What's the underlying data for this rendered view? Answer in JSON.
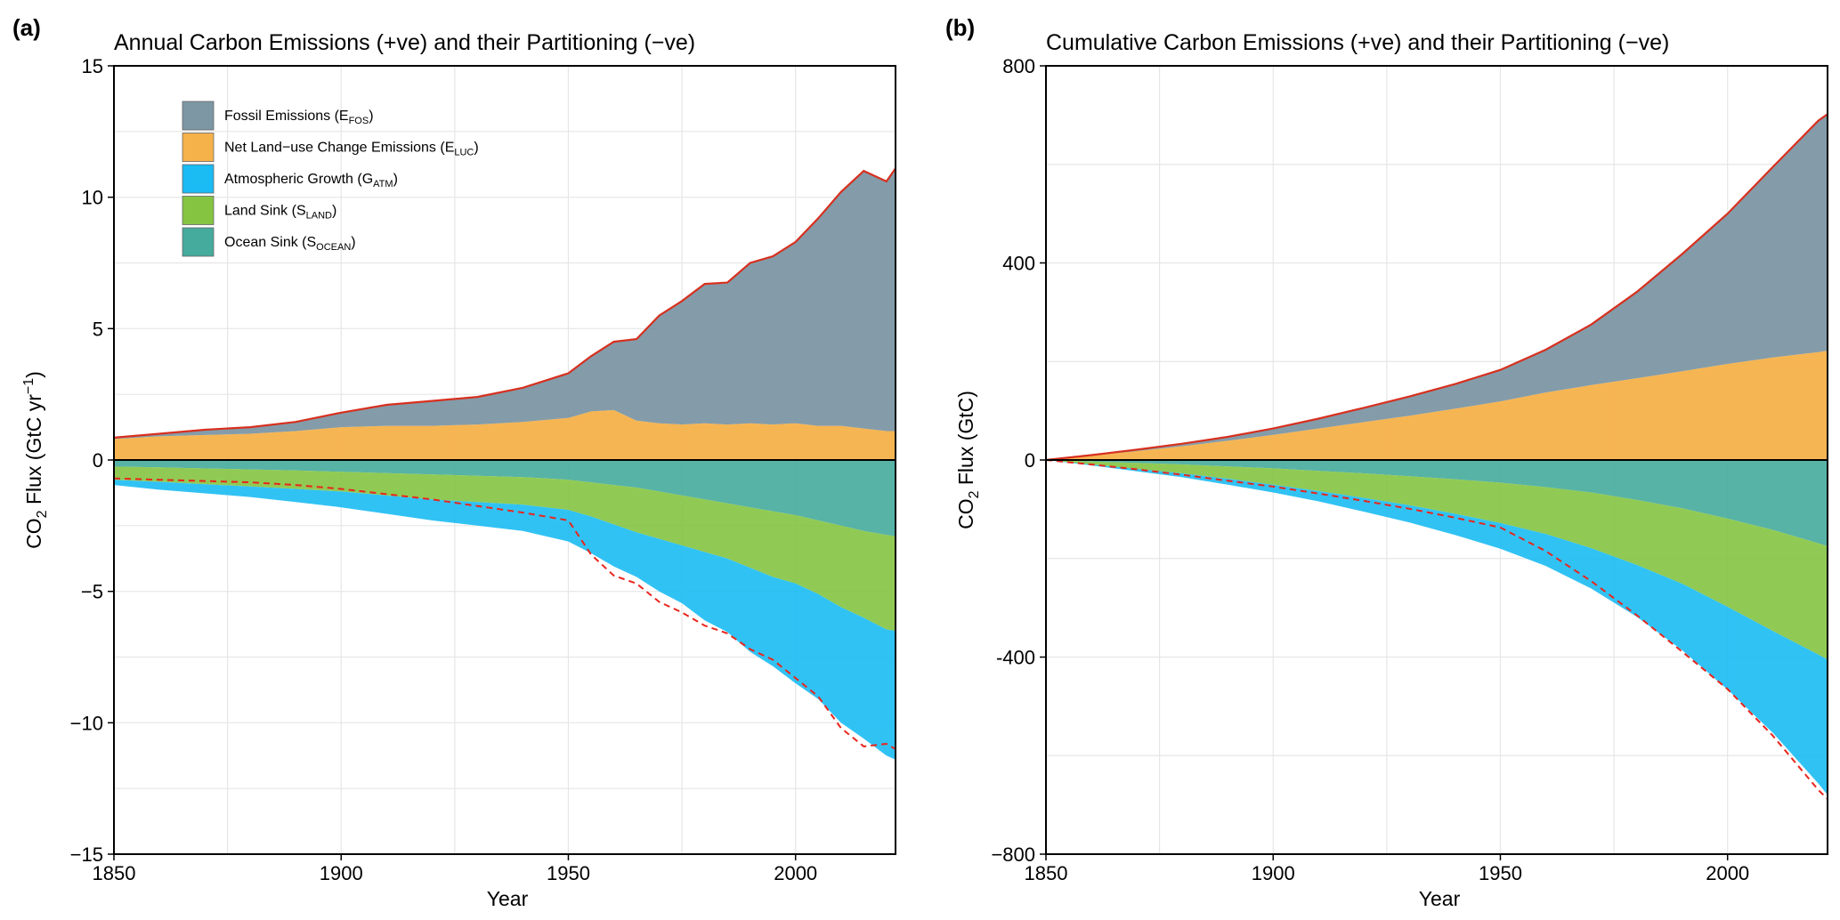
{
  "colors": {
    "fossil": "#7d97a4",
    "luc": "#f5b14a",
    "atm": "#1bbbf3",
    "land": "#84c441",
    "ocean": "#45ab9c",
    "total_line": "#d7301f",
    "partition_line": "#e8261c"
  },
  "chart_data": [
    {
      "type": "area",
      "panel": "(a)",
      "title": "Annual Carbon Emissions (+ve) and their Partitioning (−ve)",
      "xlabel": "Year",
      "ylabel": {
        "prefix": "CO",
        "sub": "2",
        "middle": " Flux (GtC yr",
        "sup": "−1",
        "suffix": ")"
      },
      "xlim": [
        1850,
        2022
      ],
      "ylim": [
        -15,
        15
      ],
      "xticks": [
        1850,
        1900,
        1950,
        2000
      ],
      "xtick_labels": [
        "1850",
        "1900",
        "1950",
        "2000"
      ],
      "yticks": [
        -15,
        -10,
        -5,
        0,
        5,
        10,
        15
      ],
      "ytick_labels": [
        "−15",
        "−10",
        "−5",
        "0",
        "5",
        "10",
        "15"
      ],
      "grid": true,
      "legend_position": "top-left",
      "legend": [
        {
          "key": "fossil",
          "text": "Fossil Emissions (E",
          "sub": "FOS",
          "end": ")"
        },
        {
          "key": "luc",
          "text": "Net Land−use Change Emissions (E",
          "sub": "LUC",
          "end": ")"
        },
        {
          "key": "atm",
          "text": "Atmospheric Growth (G",
          "sub": "ATM",
          "end": ")"
        },
        {
          "key": "land",
          "text": "Land Sink (S",
          "sub": "LAND",
          "end": ")"
        },
        {
          "key": "ocean",
          "text": "Ocean Sink (S",
          "sub": "OCEAN",
          "end": ")"
        }
      ],
      "years": [
        1850,
        1860,
        1870,
        1880,
        1890,
        1900,
        1910,
        1920,
        1930,
        1940,
        1950,
        1955,
        1960,
        1965,
        1970,
        1975,
        1980,
        1985,
        1990,
        1995,
        2000,
        2005,
        2010,
        2015,
        2020,
        2022
      ],
      "series": {
        "fossil": [
          0.05,
          0.1,
          0.2,
          0.25,
          0.35,
          0.55,
          0.8,
          0.95,
          1.05,
          1.3,
          1.7,
          2.1,
          2.6,
          3.1,
          4.1,
          4.7,
          5.3,
          5.4,
          6.1,
          6.4,
          6.9,
          7.9,
          8.9,
          9.8,
          9.5,
          10.0
        ],
        "luc": [
          0.8,
          0.9,
          0.95,
          1.0,
          1.1,
          1.25,
          1.3,
          1.3,
          1.35,
          1.45,
          1.6,
          1.85,
          1.9,
          1.5,
          1.4,
          1.35,
          1.4,
          1.35,
          1.4,
          1.35,
          1.4,
          1.3,
          1.3,
          1.2,
          1.1,
          1.1
        ],
        "ocean": [
          -0.25,
          -0.28,
          -0.32,
          -0.36,
          -0.4,
          -0.45,
          -0.5,
          -0.55,
          -0.6,
          -0.65,
          -0.75,
          -0.85,
          -0.95,
          -1.05,
          -1.2,
          -1.35,
          -1.5,
          -1.65,
          -1.8,
          -1.95,
          -2.1,
          -2.3,
          -2.5,
          -2.7,
          -2.85,
          -2.9
        ],
        "land": [
          -0.5,
          -0.55,
          -0.6,
          -0.65,
          -0.7,
          -0.75,
          -0.85,
          -0.95,
          -1.0,
          -1.05,
          -1.15,
          -1.3,
          -1.5,
          -1.7,
          -1.8,
          -1.9,
          -2.0,
          -2.1,
          -2.3,
          -2.5,
          -2.6,
          -2.8,
          -3.1,
          -3.3,
          -3.6,
          -3.6
        ],
        "atm": [
          -0.2,
          -0.3,
          -0.35,
          -0.4,
          -0.5,
          -0.6,
          -0.7,
          -0.8,
          -0.9,
          -1.0,
          -1.2,
          -1.4,
          -1.6,
          -1.7,
          -2.0,
          -2.2,
          -2.6,
          -2.8,
          -3.2,
          -3.4,
          -3.8,
          -4.0,
          -4.4,
          -4.6,
          -4.8,
          -4.9
        ],
        "imbalance_line": [
          -0.7,
          -0.75,
          -0.8,
          -0.85,
          -0.95,
          -1.1,
          -1.3,
          -1.5,
          -1.75,
          -2.0,
          -2.3,
          -3.6,
          -4.4,
          -4.7,
          -5.4,
          -5.8,
          -6.3,
          -6.6,
          -7.2,
          -7.6,
          -8.3,
          -9.0,
          -10.2,
          -10.9,
          -10.8,
          -11.0
        ]
      }
    },
    {
      "type": "area",
      "panel": "(b)",
      "title": "Cumulative Carbon Emissions (+ve) and their Partitioning (−ve)",
      "xlabel": "Year",
      "ylabel": {
        "prefix": "CO",
        "sub": "2",
        "middle": " Flux (GtC)",
        "sup": "",
        "suffix": ""
      },
      "xlim": [
        1850,
        2022
      ],
      "ylim": [
        -800,
        800
      ],
      "xticks": [
        1850,
        1900,
        1950,
        2000
      ],
      "xtick_labels": [
        "1850",
        "1900",
        "1950",
        "2000"
      ],
      "yticks": [
        -800,
        -400,
        0,
        400,
        800
      ],
      "ytick_labels": [
        "−800",
        "-400",
        "0",
        "400",
        "800"
      ],
      "grid": true,
      "years": [
        1850,
        1860,
        1870,
        1880,
        1890,
        1900,
        1910,
        1920,
        1930,
        1940,
        1950,
        1960,
        1970,
        1980,
        1990,
        2000,
        2010,
        2020,
        2022
      ],
      "series": {
        "fossil": [
          0,
          1,
          3,
          5,
          8,
          13,
          20,
          29,
          39,
          50,
          64,
          87,
          123,
          175,
          238,
          305,
          387,
          470,
          480
        ],
        "luc": [
          0,
          9,
          18,
          28,
          39,
          51,
          64,
          77,
          90,
          104,
          119,
          137,
          152,
          166,
          180,
          195,
          208,
          219,
          222
        ],
        "ocean": [
          0,
          -3,
          -6,
          -9,
          -13,
          -17,
          -22,
          -27,
          -33,
          -39,
          -46,
          -55,
          -66,
          -81,
          -98,
          -119,
          -142,
          -169,
          -175
        ],
        "land": [
          0,
          -6,
          -12,
          -18,
          -25,
          -33,
          -41,
          -50,
          -59,
          -70,
          -82,
          -95,
          -113,
          -132,
          -153,
          -179,
          -205,
          -226,
          -230
        ],
        "atm": [
          0,
          -2,
          -5,
          -8,
          -12,
          -16,
          -21,
          -28,
          -35,
          -43,
          -52,
          -65,
          -82,
          -105,
          -135,
          -168,
          -207,
          -262,
          -275
        ],
        "imbalance_line": [
          0,
          -9,
          -19,
          -30,
          -42,
          -54,
          -68,
          -83,
          -99,
          -117,
          -137,
          -185,
          -246,
          -315,
          -389,
          -465,
          -560,
          -670,
          -688
        ]
      }
    }
  ]
}
